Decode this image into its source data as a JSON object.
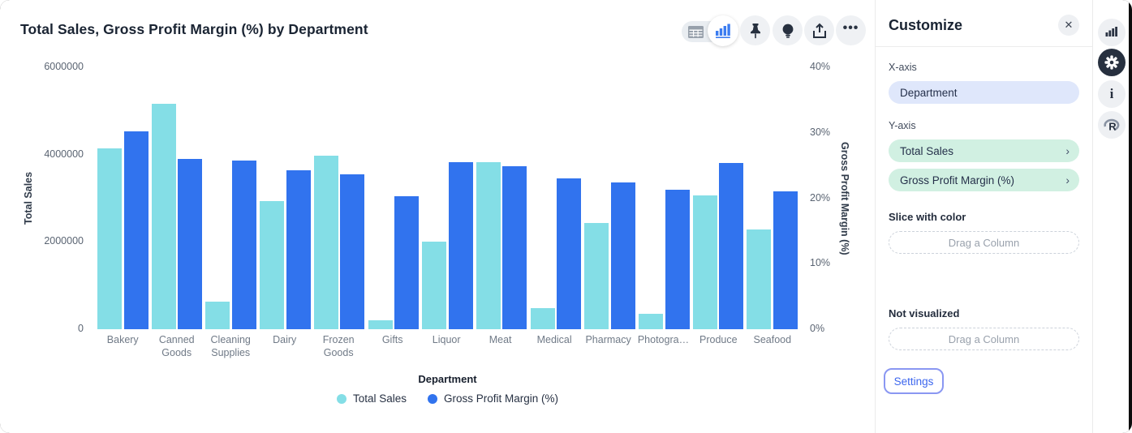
{
  "chart": {
    "title": "Total Sales, Gross Profit Margin (%) by Department"
  },
  "toolbar": {
    "icons": [
      "table-view-icon",
      "chart-view-icon",
      "pin-icon",
      "lightbulb-icon",
      "share-icon",
      "more-icon"
    ],
    "selected_view": "chart"
  },
  "chart_data": {
    "type": "bar",
    "title": "Total Sales, Gross Profit Margin (%) by Department",
    "categories": [
      "Bakery",
      "Canned Goods",
      "Cleaning Supplies",
      "Dairy",
      "Frozen Goods",
      "Gifts",
      "Liquor",
      "Meat",
      "Medical",
      "Pharmacy",
      "Photogra…",
      "Produce",
      "Seafood"
    ],
    "series": [
      {
        "name": "Total Sales",
        "axis": "left",
        "color": "#84dee6",
        "values": [
          4150000,
          5170000,
          640000,
          2940000,
          3980000,
          200000,
          2000000,
          3830000,
          480000,
          2430000,
          350000,
          3070000,
          2280000
        ]
      },
      {
        "name": "Gross Profit Margin (%)",
        "axis": "right",
        "color": "#3173ee",
        "values": [
          30.2,
          26.0,
          25.8,
          24.3,
          23.6,
          20.3,
          25.5,
          24.9,
          23.0,
          22.4,
          21.3,
          25.4,
          21.0
        ]
      }
    ],
    "left_axis": {
      "label": "Total Sales",
      "min": 0,
      "max": 6000000,
      "ticks": [
        "0",
        "2000000",
        "4000000",
        "6000000"
      ]
    },
    "right_axis": {
      "label": "Gross Profit Margin (%)",
      "min": 0,
      "max": 40,
      "ticks": [
        "0%",
        "10%",
        "20%",
        "30%",
        "40%"
      ]
    },
    "xlabel": "Department",
    "legend_position": "bottom",
    "grid": false
  },
  "customize": {
    "title": "Customize",
    "close_icon": "✕",
    "x_axis_label": "X-axis",
    "x_axis_value": "Department",
    "y_axis_label": "Y-axis",
    "y_axis_values": [
      "Total Sales",
      "Gross Profit Margin (%)"
    ],
    "chevron": "›",
    "slice_label": "Slice with color",
    "slice_placeholder": "Drag a Column",
    "not_visualized_label": "Not visualized",
    "not_visualized_placeholder": "Drag a Column",
    "settings_label": "Settings"
  },
  "right_rail": {
    "icons": [
      "chart-panel-icon",
      "settings-gear-icon",
      "info-icon",
      "r-language-icon"
    ],
    "active": "settings-gear-icon",
    "info_glyph": "i"
  }
}
